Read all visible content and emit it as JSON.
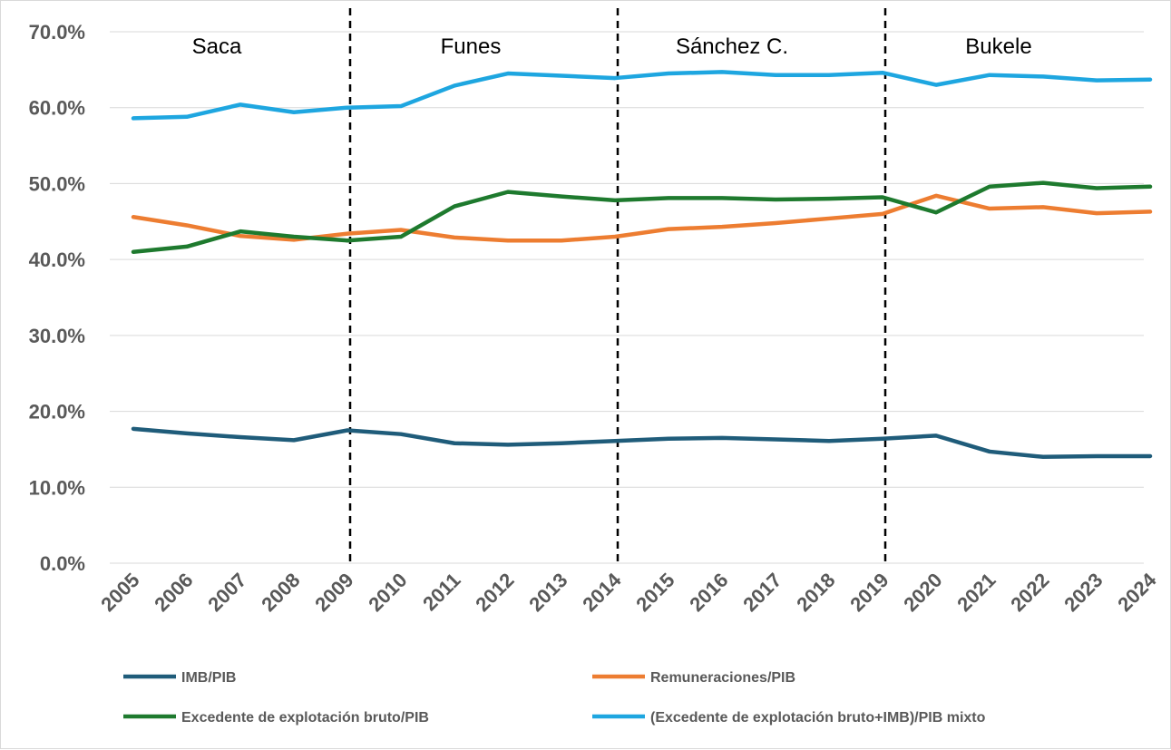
{
  "chart_data": {
    "type": "line",
    "title": "",
    "xlabel": "",
    "ylabel": "",
    "x": [
      "2005",
      "2006",
      "2007",
      "2008",
      "2009",
      "2010",
      "2011",
      "2012",
      "2013",
      "2014",
      "2015",
      "2016",
      "2017",
      "2018",
      "2019",
      "2020",
      "2021",
      "2022",
      "2023",
      "2024"
    ],
    "ylim": [
      0,
      70
    ],
    "yticks": [
      "0.0%",
      "10.0%",
      "20.0%",
      "30.0%",
      "40.0%",
      "50.0%",
      "60.0%",
      "70.0%"
    ],
    "grid": true,
    "legend_position": "bottom",
    "series": [
      {
        "name": "IMB/PIB",
        "color": "#1f5c7a",
        "values": [
          17.7,
          17.1,
          16.6,
          16.2,
          17.5,
          17.0,
          15.8,
          15.6,
          15.8,
          16.1,
          16.4,
          16.5,
          16.3,
          16.1,
          16.4,
          16.8,
          14.7,
          14.0,
          14.1,
          14.1
        ]
      },
      {
        "name": "Remuneraciones/PIB",
        "color": "#ed7d31",
        "values": [
          45.6,
          44.5,
          43.1,
          42.6,
          43.4,
          43.9,
          42.9,
          42.5,
          42.5,
          43.0,
          44.0,
          44.3,
          44.8,
          45.4,
          46.0,
          48.4,
          46.7,
          46.9,
          46.1,
          46.3
        ]
      },
      {
        "name": "Excedente de explotación bruto/PIB",
        "color": "#1e7a2e",
        "values": [
          41.0,
          41.7,
          43.7,
          43.0,
          42.5,
          43.0,
          47.0,
          48.9,
          48.3,
          47.8,
          48.1,
          48.1,
          47.9,
          48.0,
          48.2,
          46.2,
          49.6,
          50.1,
          49.4,
          49.6
        ]
      },
      {
        "name": "(Excedente de explotación bruto+IMB)/PIB mixto",
        "color": "#1ea6e0",
        "values": [
          58.6,
          58.8,
          60.4,
          59.4,
          60.0,
          60.2,
          62.9,
          64.5,
          64.2,
          63.9,
          64.5,
          64.7,
          64.3,
          64.3,
          64.6,
          63.0,
          64.3,
          64.1,
          63.6,
          63.7
        ]
      }
    ],
    "periods": [
      {
        "label": "Saca"
      },
      {
        "label": "Funes"
      },
      {
        "label": "Sánchez C."
      },
      {
        "label": "Bukele"
      }
    ],
    "dividers_at": [
      "2009",
      "2014",
      "2019"
    ]
  }
}
